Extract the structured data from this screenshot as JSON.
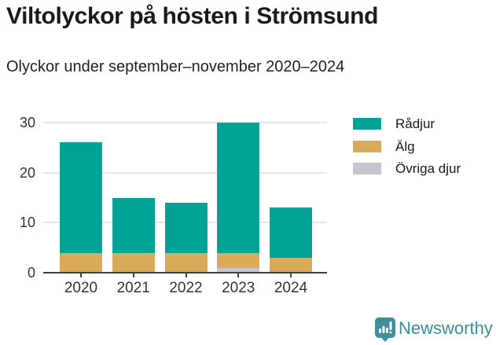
{
  "header": {
    "title": "Viltolyckor på hösten i Strömsund",
    "subtitle": "Olyckor under september–november 2020–2024"
  },
  "chart_data": {
    "type": "bar",
    "stacked": true,
    "title": "Viltolyckor på hösten i Strömsund",
    "subtitle": "Olyckor under september–november 2020–2024",
    "categories": [
      "2020",
      "2021",
      "2022",
      "2023",
      "2024"
    ],
    "series": [
      {
        "name": "Rådjur",
        "color": "#00a396",
        "values": [
          22,
          11,
          10,
          26,
          10
        ]
      },
      {
        "name": "Älg",
        "color": "#d9ab58",
        "values": [
          4,
          4,
          4,
          3,
          3
        ]
      },
      {
        "name": "Övriga djur",
        "color": "#c7c5d0",
        "values": [
          0,
          0,
          0,
          1,
          0
        ]
      }
    ],
    "stack_totals": [
      26,
      15,
      14,
      30,
      13
    ],
    "xlabel": "",
    "ylabel": "",
    "ylim": [
      0,
      30
    ],
    "yticks": [
      0,
      10,
      20,
      30
    ],
    "grid": "horizontal",
    "legend_position": "right"
  },
  "footer": {
    "brand": "Newsworthy"
  },
  "colors": {
    "bar_radjur": "#00a396",
    "bar_alg": "#d9ab58",
    "bar_ovriga": "#c7c5d0",
    "axis": "#3f3f3f",
    "gridline": "#e6e6e6",
    "brand_teal": "#3d8d97"
  }
}
